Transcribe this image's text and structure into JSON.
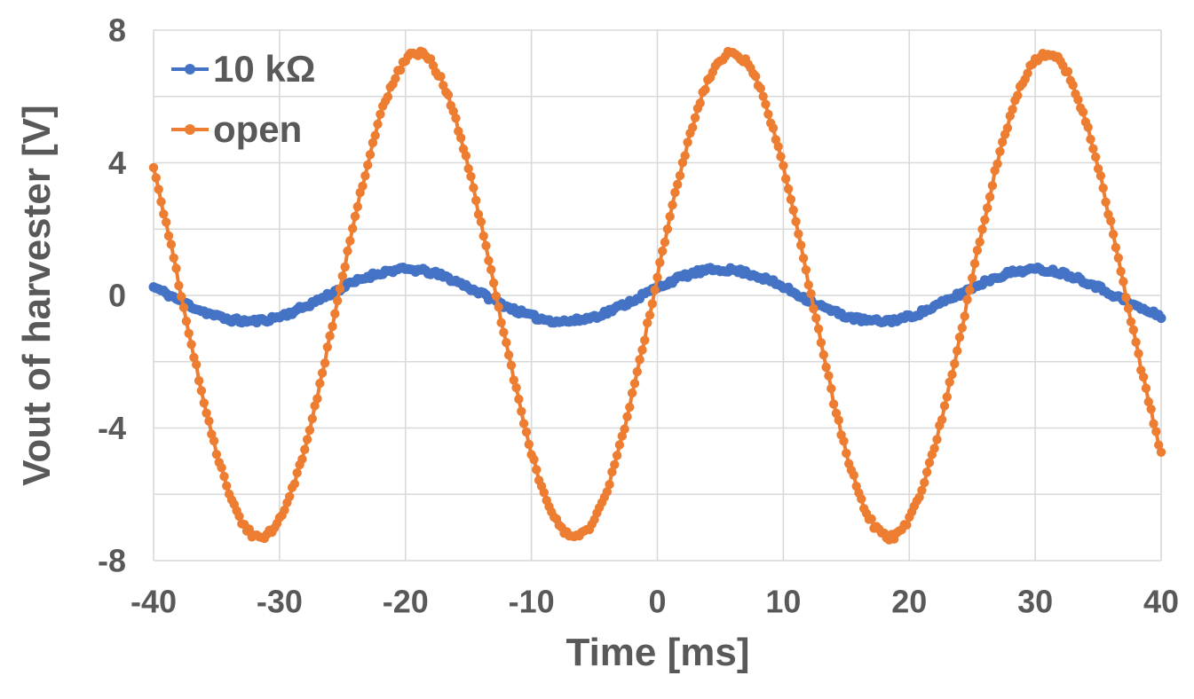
{
  "figure": {
    "background_color": "#FFFFFF",
    "text_color": "#595959",
    "grid_color": "#D9D9D9"
  },
  "chart_data": {
    "type": "line",
    "title": "",
    "xlabel": "Time [ms]",
    "ylabel": "Vout of harvester [V]",
    "xlim": [
      -40,
      40
    ],
    "ylim": [
      -8,
      8
    ],
    "x_ticks": [
      -40,
      -30,
      -20,
      -10,
      0,
      10,
      20,
      30,
      40
    ],
    "y_ticks": [
      -8,
      -4,
      0,
      4,
      8
    ],
    "x_grid_step_ms": 10,
    "y_grid_step_V": 2,
    "grid": true,
    "legend_position": "top-left-inside",
    "marker_style": "filled-circle",
    "series": [
      {
        "name": "10 kΩ",
        "color": "#4472C4",
        "waveform": {
          "shape": "sine",
          "amplitude_V": 0.78,
          "offset_V": 0,
          "period_ms": 25,
          "rising_zero_crossing_ms": -1.2,
          "noise_V": 0.07,
          "sample_step_ms": 0.2
        },
        "sampled_points": {
          "t_ms": [
            -40,
            -37.5,
            -35,
            -32.5,
            -30,
            -27.5,
            -25,
            -22.5,
            -20,
            -17.5,
            -15,
            -12.5,
            -10,
            -7.5,
            -5,
            -2.5,
            0,
            2.5,
            5,
            7.5,
            10,
            12.5,
            15,
            17.5,
            20,
            22.5,
            25,
            27.5,
            30,
            32.5,
            35,
            37.5,
            40
          ],
          "v_V": [
            0.25,
            -0.23,
            -0.63,
            -0.78,
            -0.64,
            -0.25,
            0.23,
            0.63,
            0.78,
            0.64,
            0.25,
            -0.23,
            -0.63,
            -0.78,
            -0.64,
            -0.25,
            0.23,
            0.63,
            0.78,
            0.64,
            0.25,
            -0.23,
            -0.63,
            -0.78,
            -0.64,
            -0.25,
            0.23,
            0.63,
            0.78,
            0.64,
            0.25,
            -0.23,
            -0.63
          ]
        }
      },
      {
        "name": "open",
        "color": "#ED7D31",
        "waveform": {
          "shape": "sine",
          "amplitude_V": 7.3,
          "offset_V": 0,
          "period_ms": 25,
          "rising_zero_crossing_ms": -0.3,
          "noise_V": 0.09,
          "sample_step_ms": 0.2
        },
        "sampled_points": {
          "t_ms": [
            -40,
            -37.5,
            -35,
            -32.5,
            -30,
            -27.5,
            -25,
            -22.5,
            -20,
            -17.5,
            -15,
            -12.5,
            -10,
            -7.5,
            -5,
            -2.5,
            0,
            2.5,
            5,
            7.5,
            10,
            12.5,
            15,
            17.5,
            20,
            22.5,
            25,
            27.5,
            30,
            32.5,
            35,
            37.5,
            40
          ],
          "v_V": [
            3.84,
            -0.55,
            -4.71,
            -7.09,
            -6.75,
            -3.83,
            0.55,
            4.72,
            7.09,
            6.75,
            3.84,
            -0.55,
            -4.71,
            -7.09,
            -6.75,
            -3.83,
            0.55,
            4.72,
            7.09,
            6.75,
            3.84,
            -0.55,
            -4.71,
            -7.09,
            -6.75,
            -3.83,
            0.55,
            4.72,
            7.09,
            6.75,
            3.84,
            -0.55,
            -4.71
          ]
        }
      }
    ]
  }
}
